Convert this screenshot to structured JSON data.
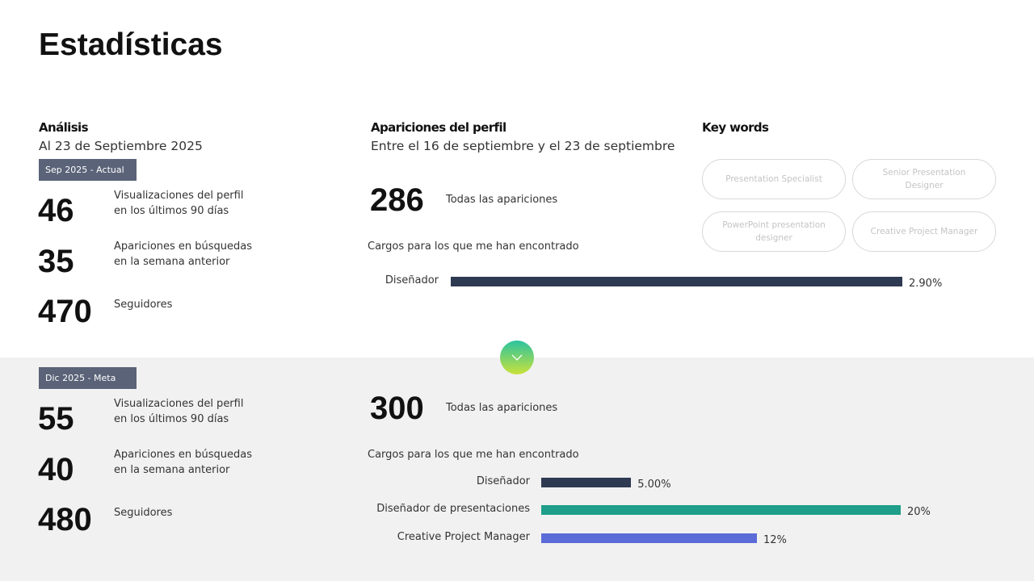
{
  "title": "Estadísticas",
  "analysis": {
    "heading": "Análisis",
    "subheading": "Al 23 de Septiembre 2025"
  },
  "profile": {
    "heading": "Apariciones del perfil",
    "subheading": "Entre el 16 de septiembre y el 23 de septiembre"
  },
  "keywords": {
    "heading": "Key words",
    "items": [
      "Presentation Specialist",
      "Senior Presentation Designer",
      "PowerPoint presentation designer",
      "Creative Project Manager"
    ]
  },
  "periods": [
    {
      "badge": "Sep 2025 - Actual",
      "stats": [
        {
          "value": 46,
          "label": [
            "Visualizaciones del perfil",
            "en los últimos 90 días"
          ]
        },
        {
          "value": 35,
          "label": [
            "Apariciones en búsquedas",
            "en la semana anterior"
          ]
        },
        {
          "value": 470,
          "label": [
            "Seguidores"
          ]
        }
      ],
      "appearances": {
        "value": 286,
        "label": "Todas las apariciones"
      },
      "chart": {
        "type": "bar",
        "title": "Cargos para los que me han encontrado",
        "categories": [
          "Diseñador"
        ],
        "values": [
          2.9
        ],
        "value_labels": [
          "2.90%"
        ],
        "colors": [
          "#2e3a52"
        ]
      }
    },
    {
      "badge": "Dic 2025 - Meta",
      "stats": [
        {
          "value": 55,
          "label": [
            "Visualizaciones del perfil",
            "en los últimos 90 días"
          ]
        },
        {
          "value": 40,
          "label": [
            "Apariciones en búsquedas",
            "en la semana anterior"
          ]
        },
        {
          "value": 480,
          "label": [
            "Seguidores"
          ]
        }
      ],
      "appearances": {
        "value": 300,
        "label": "Todas las apariciones"
      },
      "chart": {
        "type": "bar",
        "title": "Cargos para los que me han encontrado",
        "categories": [
          "Diseñador",
          "Diseñador de presentaciones",
          "Creative Project Manager"
        ],
        "values": [
          5,
          20,
          12
        ],
        "value_labels": [
          "5.00%",
          "20%",
          "12%"
        ],
        "colors": [
          "#2e3a52",
          "#1f9e89",
          "#5b6bd8"
        ]
      }
    }
  ]
}
